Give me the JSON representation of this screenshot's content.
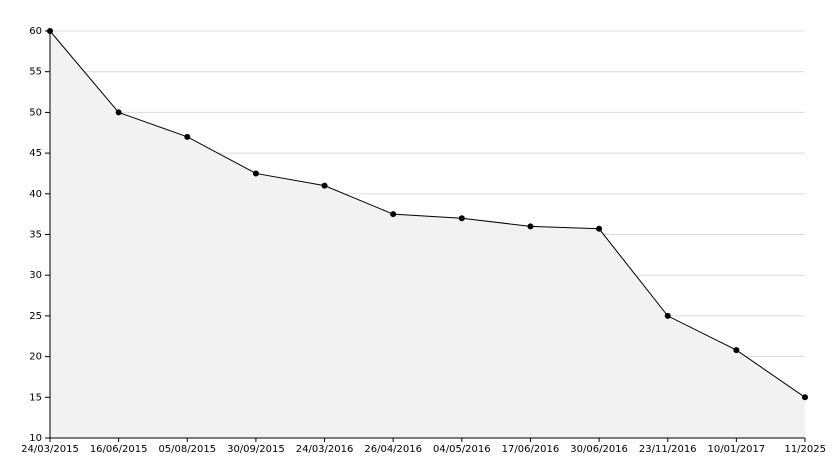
{
  "chart_data": {
    "type": "area",
    "categories": [
      "24/03/2015",
      "16/06/2015",
      "05/08/2015",
      "30/09/2015",
      "24/03/2016",
      "26/04/2016",
      "04/05/2016",
      "17/06/2016",
      "30/06/2016",
      "23/11/2016",
      "10/01/2017",
      "11/2025"
    ],
    "values": [
      60,
      50,
      47,
      42.5,
      41,
      37.5,
      37,
      36,
      35.7,
      25,
      20.8,
      15
    ],
    "color": "#000000",
    "fill": "#f2f2f2",
    "ylim": [
      10,
      60
    ],
    "yticks": [
      10,
      15,
      20,
      25,
      30,
      35,
      40,
      45,
      50,
      55,
      60
    ],
    "grid": true
  }
}
